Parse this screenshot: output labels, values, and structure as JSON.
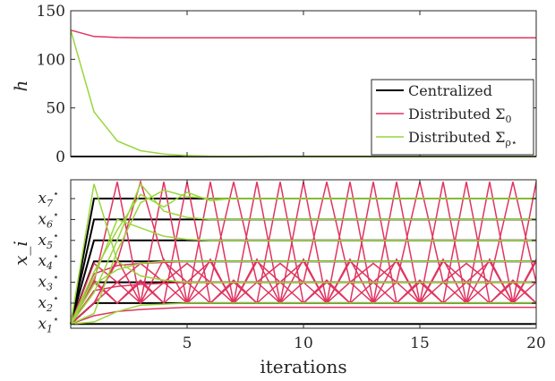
{
  "chart_data": [
    {
      "type": "line",
      "ylabel": "h",
      "xlabel": "",
      "xlim": [
        0,
        20
      ],
      "ylim": [
        0,
        150
      ],
      "xticks": [
        5,
        10,
        15,
        20
      ],
      "xtick_labels_shown": false,
      "yticks": [
        0,
        50,
        100,
        150
      ],
      "ytick_labels": [
        "0",
        "50",
        "100",
        "150"
      ],
      "grid": false,
      "legend_position": "lower-right",
      "series": [
        {
          "name": "Centralized",
          "color": "#000000",
          "x": [
            0,
            20
          ],
          "y": [
            0,
            0
          ]
        },
        {
          "name": "Distributed Σ0",
          "color": "#e0345f",
          "x": [
            0,
            1,
            2,
            3,
            4,
            5,
            6,
            7,
            8,
            9,
            10,
            11,
            12,
            13,
            14,
            15,
            16,
            17,
            18,
            19,
            20
          ],
          "y": [
            130,
            123.5,
            122.5,
            122.2,
            122.2,
            122.2,
            122.2,
            122.2,
            122.2,
            122.2,
            122.2,
            122.2,
            122.2,
            122.2,
            122.2,
            122.2,
            122.2,
            122.2,
            122.2,
            122.2,
            122.2
          ]
        },
        {
          "name": "Distributed Σρ*",
          "color": "#9ad63c",
          "x": [
            0,
            1,
            2,
            3,
            4,
            5,
            6,
            7,
            8,
            9,
            10,
            11,
            12,
            13,
            14,
            15,
            16,
            17,
            18,
            19,
            20
          ],
          "y": [
            130,
            46,
            16,
            6,
            2.5,
            1,
            0.4,
            0.2,
            0.1,
            0,
            0,
            0,
            0,
            0,
            0,
            0,
            0,
            0,
            0,
            0,
            0
          ]
        }
      ],
      "legend": [
        "Centralized",
        "Distributed Σ0",
        "Distributed Σρ*"
      ]
    },
    {
      "type": "line",
      "ylabel": "x_i",
      "xlabel": "iterations",
      "xlim": [
        0,
        20
      ],
      "ylim": [
        0.8,
        7.9
      ],
      "xticks": [
        5,
        10,
        15,
        20
      ],
      "xtick_labels": [
        "5",
        "10",
        "15",
        "20"
      ],
      "yticks": [
        1,
        2,
        3,
        4,
        5,
        6,
        7
      ],
      "ytick_labels": [
        "x1*",
        "x2*",
        "x3*",
        "x4*",
        "x5*",
        "x6*",
        "x7*"
      ],
      "grid": false,
      "centralized_color": "#000000",
      "distributed_sigma0_color": "#e0345f",
      "distributed_sigma_rho_color": "#9ad63c",
      "centralized": [
        {
          "y": [
            1,
            1,
            1,
            1,
            1,
            1,
            1,
            1,
            1,
            1,
            1,
            1,
            1,
            1,
            1,
            1,
            1,
            1,
            1,
            1,
            1
          ]
        },
        {
          "y": [
            1,
            2,
            2,
            2,
            2,
            2,
            2,
            2,
            2,
            2,
            2,
            2,
            2,
            2,
            2,
            2,
            2,
            2,
            2,
            2,
            2
          ]
        },
        {
          "y": [
            1,
            3,
            3,
            3,
            3,
            3,
            3,
            3,
            3,
            3,
            3,
            3,
            3,
            3,
            3,
            3,
            3,
            3,
            3,
            3,
            3
          ]
        },
        {
          "y": [
            1,
            4,
            4,
            4,
            4,
            4,
            4,
            4,
            4,
            4,
            4,
            4,
            4,
            4,
            4,
            4,
            4,
            4,
            4,
            4,
            4
          ]
        },
        {
          "y": [
            1,
            5,
            5,
            5,
            5,
            5,
            5,
            5,
            5,
            5,
            5,
            5,
            5,
            5,
            5,
            5,
            5,
            5,
            5,
            5,
            5
          ]
        },
        {
          "y": [
            1,
            6,
            6,
            6,
            6,
            6,
            6,
            6,
            6,
            6,
            6,
            6,
            6,
            6,
            6,
            6,
            6,
            6,
            6,
            6,
            6
          ]
        },
        {
          "y": [
            1,
            7,
            7,
            7,
            7,
            7,
            7,
            7,
            7,
            7,
            7,
            7,
            7,
            7,
            7,
            7,
            7,
            7,
            7,
            7,
            7
          ]
        }
      ],
      "distributed_sigma0": [
        {
          "y": [
            1,
            1.4,
            1.6,
            1.7,
            1.75,
            1.8,
            1.8,
            1.8,
            1.8,
            1.8,
            1.8,
            1.8,
            1.8,
            1.8,
            1.8,
            1.8,
            1.8,
            1.8,
            1.8,
            1.8,
            1.8
          ]
        },
        {
          "y": [
            1,
            2.6,
            2.8,
            2.9,
            2.95,
            3.0,
            3.0,
            3.0,
            3.0,
            3.0,
            3.0,
            3.0,
            3.0,
            3.0,
            3.0,
            3.0,
            3.0,
            3.0,
            3.0,
            3.0,
            3.0
          ]
        },
        {
          "y": [
            1,
            3.4,
            3.8,
            3.9,
            3.95,
            4.0,
            4.0,
            4.0,
            4.0,
            4.0,
            4.0,
            4.0,
            4.0,
            4.0,
            4.0,
            4.0,
            4.0,
            4.0,
            4.0,
            4.0,
            4.0
          ]
        },
        {
          "y": [
            1,
            2.0,
            4.1,
            2.0,
            4.1,
            2.0,
            4.1,
            2.0,
            4.1,
            2.0,
            4.1,
            2.0,
            4.1,
            2.0,
            4.1,
            2.0,
            4.1,
            2.0,
            4.1,
            2.0,
            4.1
          ]
        },
        {
          "y": [
            1,
            3.0,
            2.0,
            3.0,
            2.0,
            3.0,
            2.0,
            3.0,
            2.0,
            3.0,
            2.0,
            3.0,
            2.0,
            3.0,
            2.0,
            3.0,
            2.0,
            3.0,
            2.0,
            3.0,
            2.0
          ]
        },
        {
          "y": [
            1,
            2.0,
            3.0,
            2.0,
            3.0,
            2.0,
            3.0,
            2.0,
            3.0,
            2.0,
            3.0,
            2.0,
            3.0,
            2.0,
            3.0,
            2.0,
            3.0,
            2.0,
            3.0,
            2.0,
            3.0
          ]
        },
        {
          "y": [
            1,
            3.0,
            7.8,
            2.0,
            7.8,
            2.0,
            7.8,
            2.0,
            7.8,
            2.0,
            7.8,
            2.0,
            7.8,
            2.0,
            7.8,
            2.0,
            7.8,
            2.0,
            7.8,
            2.0,
            7.8
          ]
        },
        {
          "y": [
            1,
            2.0,
            4.0,
            7.8,
            4.0,
            3.0,
            4.0,
            2.0,
            4.0,
            3.0,
            4.0,
            2.0,
            4.0,
            3.0,
            4.0,
            2.0,
            4.0,
            3.0,
            4.0,
            2.0,
            4.0
          ]
        },
        {
          "y": [
            1,
            3.1,
            2.0,
            3.1,
            2.0,
            7.8,
            2.0,
            3.1,
            2.0,
            7.8,
            2.0,
            3.1,
            2.0,
            7.8,
            2.0,
            3.1,
            2.0,
            7.8,
            2.0,
            3.1,
            2.0
          ]
        },
        {
          "y": [
            1,
            3.9,
            3.0,
            3.9,
            3.0,
            3.9,
            3.0,
            7.8,
            3.0,
            3.9,
            3.0,
            7.8,
            3.0,
            3.9,
            3.0,
            7.8,
            3.0,
            3.9,
            3.0,
            7.8,
            3.0
          ]
        }
      ],
      "distributed_sigma_rho": [
        {
          "y": [
            1,
            1.1,
            1.6,
            1.9,
            1.95,
            2.0,
            2.0,
            2.0,
            2.0,
            2.0,
            2.0,
            2.0,
            2.0,
            2.0,
            2.0,
            2.0,
            2.0,
            2.0,
            2.0,
            2.0,
            2.0
          ]
        },
        {
          "y": [
            1,
            7.7,
            4.0,
            3.3,
            3.1,
            3.0,
            3.0,
            3.0,
            3.0,
            3.0,
            3.0,
            3.0,
            3.0,
            3.0,
            3.0,
            3.0,
            3.0,
            3.0,
            3.0,
            3.0,
            3.0
          ]
        },
        {
          "y": [
            1,
            2.9,
            3.6,
            3.9,
            4.0,
            4.0,
            4.0,
            4.0,
            4.0,
            4.0,
            4.0,
            4.0,
            4.0,
            4.0,
            4.0,
            4.0,
            4.0,
            4.0,
            4.0,
            4.0,
            4.0
          ]
        },
        {
          "y": [
            1,
            3.2,
            6.0,
            5.6,
            5.2,
            5.05,
            5.0,
            5.0,
            5.0,
            5.0,
            5.0,
            5.0,
            5.0,
            5.0,
            5.0,
            5.0,
            5.0,
            5.0,
            5.0,
            5.0,
            5.0
          ]
        },
        {
          "y": [
            1,
            2.5,
            5.0,
            7.7,
            6.4,
            6.1,
            6.0,
            6.0,
            6.0,
            6.0,
            6.0,
            6.0,
            6.0,
            6.0,
            6.0,
            6.0,
            6.0,
            6.0,
            6.0,
            6.0,
            6.0
          ]
        },
        {
          "y": [
            1,
            3.5,
            5.5,
            7.2,
            6.6,
            7.3,
            6.9,
            7.0,
            7.0,
            7.0,
            7.0,
            7.0,
            7.0,
            7.0,
            7.0,
            7.0,
            7.0,
            7.0,
            7.0,
            7.0,
            7.0
          ]
        },
        {
          "y": [
            1,
            1.5,
            4.5,
            6.8,
            7.4,
            7.1,
            7.0,
            7.0,
            7.0,
            7.0,
            7.0,
            7.0,
            7.0,
            7.0,
            7.0,
            7.0,
            7.0,
            7.0,
            7.0,
            7.0,
            7.0
          ]
        }
      ]
    }
  ]
}
